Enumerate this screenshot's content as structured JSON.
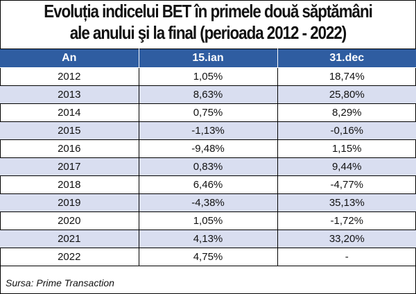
{
  "title_line1": "Evoluția indicelui BET în primele două săptămâni",
  "title_line2": "ale anului şi la final (perioada 2012 - 2022)",
  "source": "Sursa: Prime Transaction",
  "colors": {
    "header_bg": "#2f5da1",
    "header_text": "#ffffff",
    "alt_row": "#d9def0"
  },
  "chart_data": {
    "type": "table",
    "columns": [
      "An",
      "15.ian",
      "31.dec"
    ],
    "rows": [
      [
        "2012",
        "1,05%",
        "18,74%"
      ],
      [
        "2013",
        "8,63%",
        "25,80%"
      ],
      [
        "2014",
        "0,75%",
        "8,29%"
      ],
      [
        "2015",
        "-1,13%",
        "-0,16%"
      ],
      [
        "2016",
        "-9,48%",
        "1,15%"
      ],
      [
        "2017",
        "0,83%",
        "9,44%"
      ],
      [
        "2018",
        "6,46%",
        "-4,77%"
      ],
      [
        "2019",
        "-4,38%",
        "35,13%"
      ],
      [
        "2020",
        "1,05%",
        "-1,72%"
      ],
      [
        "2021",
        "4,13%",
        "33,20%"
      ],
      [
        "2022",
        "4,75%",
        "-"
      ]
    ]
  }
}
